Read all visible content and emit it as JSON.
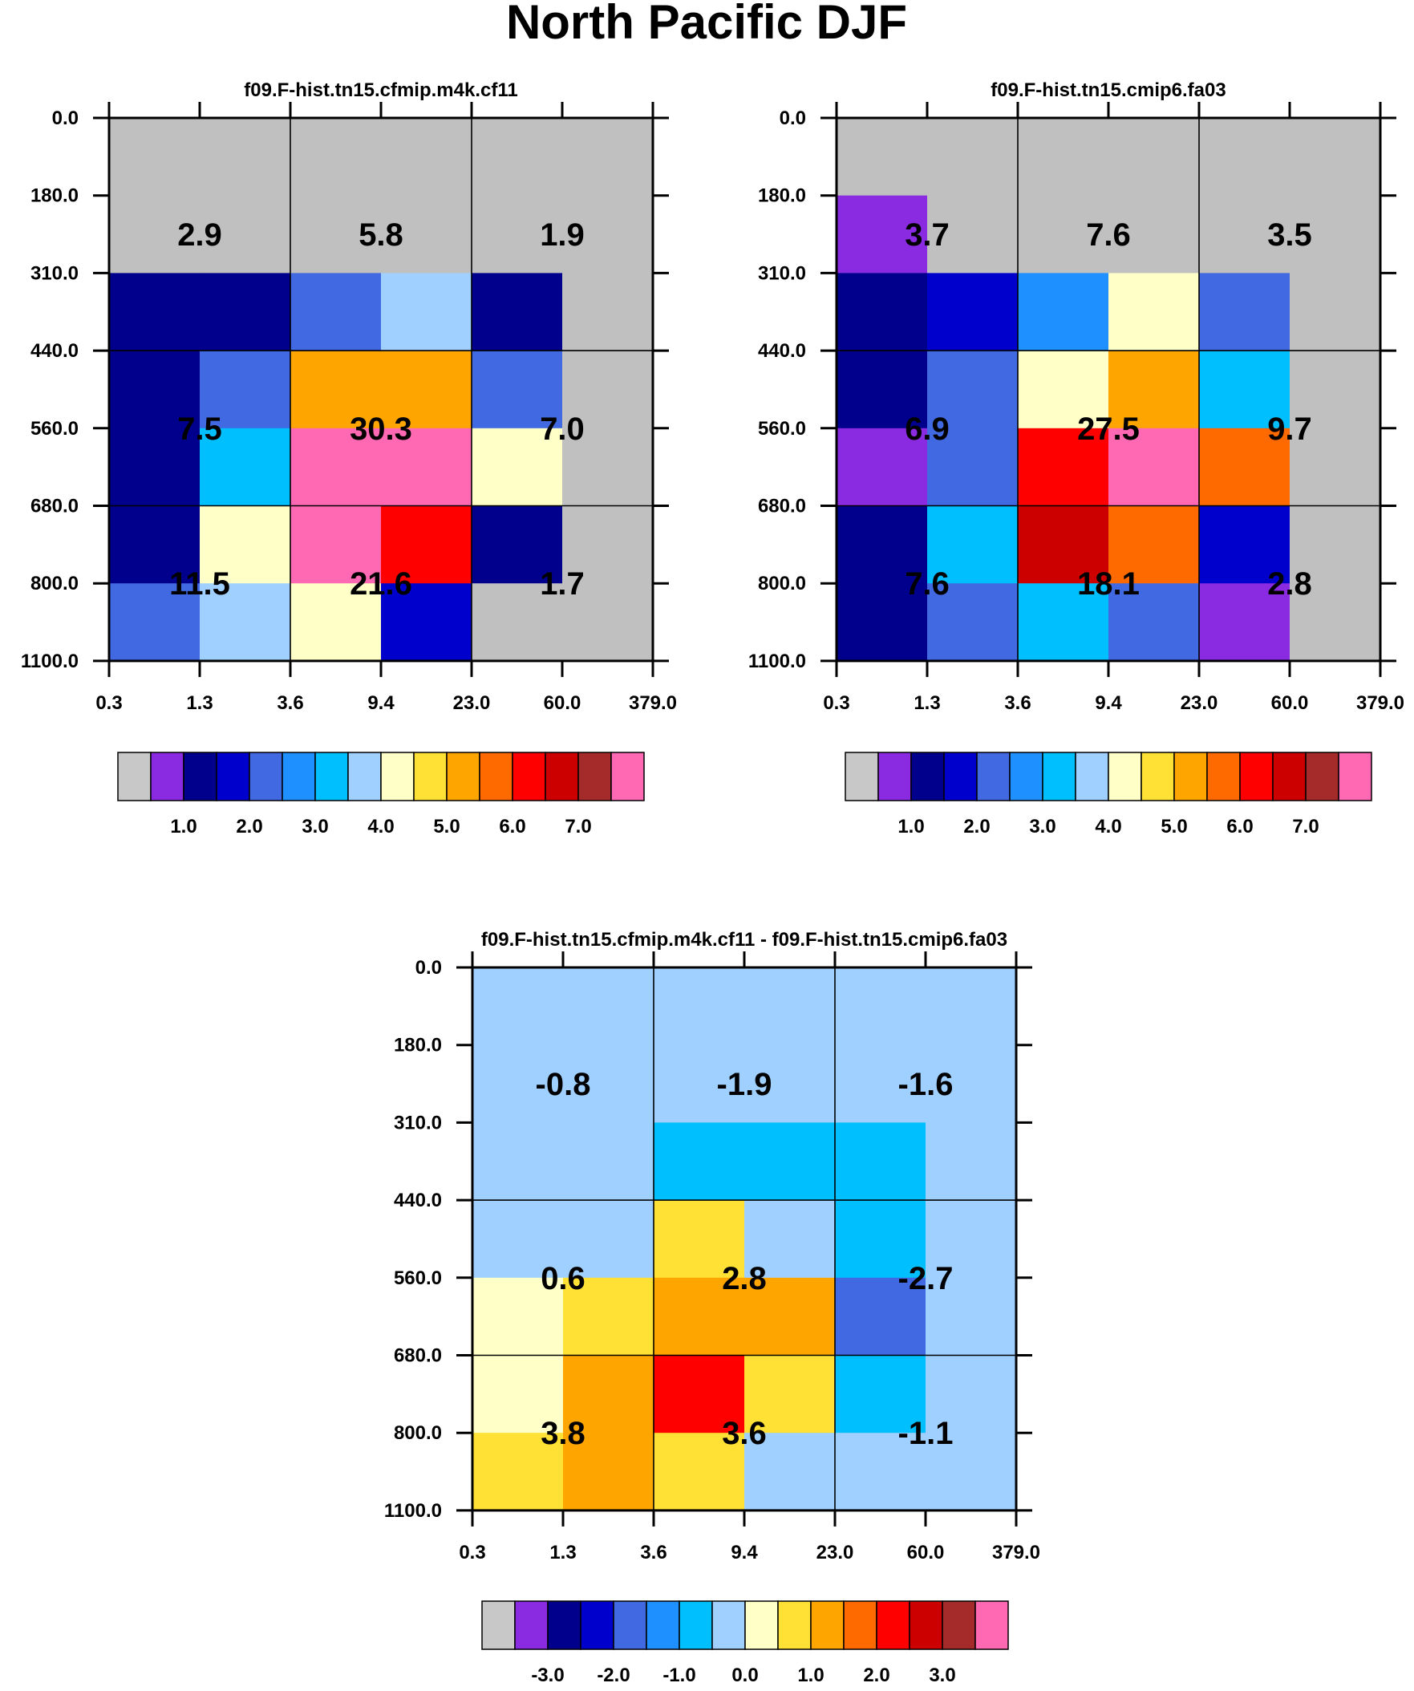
{
  "figure": {
    "title": "North Pacific DJF"
  },
  "chart_data": [
    {
      "type": "heatmap",
      "title": "f09.F-hist.tn15.cfmip.m4k.cf11",
      "x_tick_labels": [
        "0.3",
        "1.3",
        "3.6",
        "9.4",
        "23.0",
        "60.0",
        "379.0"
      ],
      "y_tick_labels": [
        "0.0",
        "180.0",
        "310.0",
        "440.0",
        "560.0",
        "680.0",
        "800.0",
        "1100.0"
      ],
      "cell_colors": [
        [
          "#c0c0c0",
          "#c0c0c0",
          "#c0c0c0",
          "#c0c0c0",
          "#c0c0c0",
          "#c0c0c0"
        ],
        [
          "#c0c0c0",
          "#c0c0c0",
          "#c0c0c0",
          "#c0c0c0",
          "#c0c0c0",
          "#c0c0c0"
        ],
        [
          "#00008c",
          "#00008c",
          "#4169e1",
          "#a0d0ff",
          "#00008c",
          "#c0c0c0"
        ],
        [
          "#00008c",
          "#4169e1",
          "#ffa500",
          "#ffa500",
          "#4169e1",
          "#c0c0c0"
        ],
        [
          "#00008c",
          "#00bfff",
          "#ff69b4",
          "#ff69b4",
          "#ffffc8",
          "#c0c0c0"
        ],
        [
          "#00008c",
          "#ffffc8",
          "#ff69b4",
          "#ff0000",
          "#00008c",
          "#c0c0c0"
        ],
        [
          "#4169e1",
          "#a0d0ff",
          "#ffffc8",
          "#0000cd",
          "#c0c0c0",
          "#c0c0c0"
        ]
      ],
      "box_values": [
        [
          "2.9",
          "5.8",
          "1.9"
        ],
        [
          "7.5",
          "30.3",
          "7.0"
        ],
        [
          "11.5",
          "21.6",
          "1.7"
        ]
      ],
      "colorbar": {
        "colors": [
          "#c8c8c8",
          "#8a2be2",
          "#00008c",
          "#0000cd",
          "#4169e1",
          "#1e90ff",
          "#00bfff",
          "#a0d0ff",
          "#ffffc8",
          "#ffe135",
          "#ffa500",
          "#ff6a00",
          "#ff0000",
          "#cd0000",
          "#a52a2a",
          "#ff69b4"
        ],
        "tick_labels": [
          "1.0",
          "2.0",
          "3.0",
          "4.0",
          "5.0",
          "6.0",
          "7.0"
        ]
      }
    },
    {
      "type": "heatmap",
      "title": "f09.F-hist.tn15.cmip6.fa03",
      "x_tick_labels": [
        "0.3",
        "1.3",
        "3.6",
        "9.4",
        "23.0",
        "60.0",
        "379.0"
      ],
      "y_tick_labels": [
        "0.0",
        "180.0",
        "310.0",
        "440.0",
        "560.0",
        "680.0",
        "800.0",
        "1100.0"
      ],
      "cell_colors": [
        [
          "#c0c0c0",
          "#c0c0c0",
          "#c0c0c0",
          "#c0c0c0",
          "#c0c0c0",
          "#c0c0c0"
        ],
        [
          "#8a2be2",
          "#c0c0c0",
          "#c0c0c0",
          "#c0c0c0",
          "#c0c0c0",
          "#c0c0c0"
        ],
        [
          "#00008c",
          "#0000cd",
          "#1e90ff",
          "#ffffc8",
          "#4169e1",
          "#c0c0c0"
        ],
        [
          "#00008c",
          "#4169e1",
          "#ffffc8",
          "#ffa500",
          "#00bfff",
          "#c0c0c0"
        ],
        [
          "#8a2be2",
          "#4169e1",
          "#ff0000",
          "#ff69b4",
          "#ff6a00",
          "#c0c0c0"
        ],
        [
          "#00008c",
          "#00bfff",
          "#cd0000",
          "#ff6a00",
          "#0000cd",
          "#c0c0c0"
        ],
        [
          "#00008c",
          "#4169e1",
          "#00bfff",
          "#4169e1",
          "#8a2be2",
          "#c0c0c0"
        ]
      ],
      "box_values": [
        [
          "3.7",
          "7.6",
          "3.5"
        ],
        [
          "6.9",
          "27.5",
          "9.7"
        ],
        [
          "7.6",
          "18.1",
          "2.8"
        ]
      ],
      "colorbar": {
        "colors": [
          "#c8c8c8",
          "#8a2be2",
          "#00008c",
          "#0000cd",
          "#4169e1",
          "#1e90ff",
          "#00bfff",
          "#a0d0ff",
          "#ffffc8",
          "#ffe135",
          "#ffa500",
          "#ff6a00",
          "#ff0000",
          "#cd0000",
          "#a52a2a",
          "#ff69b4"
        ],
        "tick_labels": [
          "1.0",
          "2.0",
          "3.0",
          "4.0",
          "5.0",
          "6.0",
          "7.0"
        ]
      }
    },
    {
      "type": "heatmap",
      "title": "f09.F-hist.tn15.cfmip.m4k.cf11 - f09.F-hist.tn15.cmip6.fa03",
      "x_tick_labels": [
        "0.3",
        "1.3",
        "3.6",
        "9.4",
        "23.0",
        "60.0",
        "379.0"
      ],
      "y_tick_labels": [
        "0.0",
        "180.0",
        "310.0",
        "440.0",
        "560.0",
        "680.0",
        "800.0",
        "1100.0"
      ],
      "cell_colors": [
        [
          "#a0d0ff",
          "#a0d0ff",
          "#a0d0ff",
          "#a0d0ff",
          "#a0d0ff",
          "#a0d0ff"
        ],
        [
          "#a0d0ff",
          "#a0d0ff",
          "#a0d0ff",
          "#a0d0ff",
          "#a0d0ff",
          "#a0d0ff"
        ],
        [
          "#a0d0ff",
          "#a0d0ff",
          "#00bfff",
          "#00bfff",
          "#00bfff",
          "#a0d0ff"
        ],
        [
          "#a0d0ff",
          "#a0d0ff",
          "#ffe135",
          "#a0d0ff",
          "#00bfff",
          "#a0d0ff"
        ],
        [
          "#ffffc8",
          "#ffe135",
          "#ffa500",
          "#ffa500",
          "#4169e1",
          "#a0d0ff"
        ],
        [
          "#ffffc8",
          "#ffa500",
          "#ff0000",
          "#ffe135",
          "#00bfff",
          "#a0d0ff"
        ],
        [
          "#ffe135",
          "#ffa500",
          "#ffe135",
          "#a0d0ff",
          "#a0d0ff",
          "#a0d0ff"
        ]
      ],
      "box_values": [
        [
          "-0.8",
          "-1.9",
          "-1.6"
        ],
        [
          "0.6",
          "2.8",
          "-2.7"
        ],
        [
          "3.8",
          "3.6",
          "-1.1"
        ]
      ],
      "colorbar": {
        "colors": [
          "#c8c8c8",
          "#8a2be2",
          "#00008c",
          "#0000cd",
          "#4169e1",
          "#1e90ff",
          "#00bfff",
          "#a0d0ff",
          "#ffffc8",
          "#ffe135",
          "#ffa500",
          "#ff6a00",
          "#ff0000",
          "#cd0000",
          "#a52a2a",
          "#ff69b4"
        ],
        "tick_labels": [
          "-3.0",
          "-2.0",
          "-1.0",
          "0.0",
          "1.0",
          "2.0",
          "3.0"
        ]
      }
    }
  ]
}
